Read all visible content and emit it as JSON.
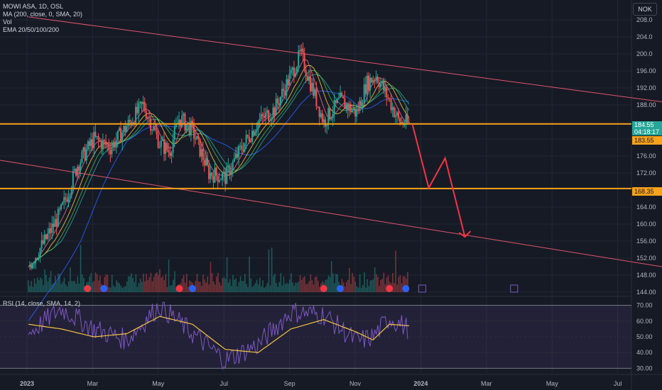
{
  "legend": {
    "symbol": "MOWI ASA, 1D, OSL",
    "ma": "MA (200, close, 0, SMA, 20)",
    "vol": "Vol",
    "ema": "EMA 20/50/100/200"
  },
  "rsi_legend": "RSI (14, close, SMA, 14, 2)",
  "currency": "NOK",
  "tags": {
    "last_price": "184.55",
    "countdown": "04:18:17",
    "upper_level": "183.55",
    "lower_level": "168.35"
  },
  "colors": {
    "background": "#161a25",
    "up": "#26a69a",
    "down": "#ef5350",
    "level_line": "#f7a21b",
    "channel": "#e0566b",
    "rsi_line": "#7e57c2",
    "rsi_ma": "#f5c242",
    "arrow": "#f23645"
  },
  "chart_data": [
    {
      "type": "candlestick",
      "title": "MOWI ASA, 1D, OSL",
      "y_axis": {
        "ylim": [
          143,
          211
        ],
        "ticks": [
          "208.0",
          "204.0",
          "200.0",
          "196.00",
          "192.00",
          "188.00",
          "180.00",
          "176.00",
          "172.00",
          "164.00",
          "160.00",
          "156.00",
          "152.00",
          "148.00",
          "144.00"
        ]
      },
      "x_axis": {
        "labels": [
          "2023",
          "Mar",
          "May",
          "Jul",
          "Sep",
          "Nov",
          "2024",
          "Mar",
          "May",
          "Jul"
        ],
        "label_x_month_index": [
          0,
          2,
          4,
          6,
          8,
          10,
          12,
          14,
          16,
          18
        ]
      },
      "price_path": [
        [
          0,
          150
        ],
        [
          0.5,
          156
        ],
        [
          1,
          163
        ],
        [
          1.5,
          174
        ],
        [
          2,
          180
        ],
        [
          2.5,
          178
        ],
        [
          3,
          183
        ],
        [
          3.5,
          188
        ],
        [
          4,
          179
        ],
        [
          4.3,
          177
        ],
        [
          4.6,
          185
        ],
        [
          5,
          182
        ],
        [
          5.5,
          172
        ],
        [
          6,
          171
        ],
        [
          6.5,
          178
        ],
        [
          7,
          184
        ],
        [
          7.5,
          187
        ],
        [
          8,
          195
        ],
        [
          8.3,
          200
        ],
        [
          8.6,
          193
        ],
        [
          9,
          184
        ],
        [
          9.5,
          189
        ],
        [
          10,
          186
        ],
        [
          10.3,
          193
        ],
        [
          10.6,
          195
        ],
        [
          11,
          189
        ],
        [
          11.3,
          184
        ],
        [
          11.6,
          183.6
        ]
      ],
      "closing_bars": {
        "last": 184.55
      },
      "levels": [
        {
          "name": "upper",
          "value": 183.55
        },
        {
          "name": "lower",
          "value": 168.35
        }
      ],
      "channel": {
        "upper": {
          "from": [
            2.6,
            206
          ],
          "to": [
            20.5,
            187.5
          ]
        },
        "lower": {
          "from": [
            0,
            175
          ],
          "to": [
            20.5,
            148.5
          ]
        }
      },
      "projection": [
        [
          11.7,
          183.5
        ],
        [
          12.2,
          168.5
        ],
        [
          12.7,
          175.5
        ],
        [
          13.3,
          157
        ]
      ],
      "event_markers_month_index": [
        1.8,
        2.3,
        4.6,
        5.0,
        9.0,
        9.5,
        11.0,
        11.5
      ],
      "event_upcoming_month_index": [
        12.0,
        14.8
      ]
    },
    {
      "type": "line",
      "title": "RSI (14, close, SMA, 14, 2)",
      "y_axis": {
        "ylim": [
          27,
          73
        ],
        "ticks": [
          "70.00",
          "60.00",
          "50.00",
          "40.00",
          "30.00"
        ]
      },
      "series": [
        {
          "values_by_month": [
            [
              0,
              52
            ],
            [
              1,
              68
            ],
            [
              2,
              55
            ],
            [
              3,
              48
            ],
            [
              4,
              70
            ],
            [
              5,
              52
            ],
            [
              6,
              35
            ],
            [
              7,
              45
            ],
            [
              8,
              66
            ],
            [
              9,
              64
            ],
            [
              10,
              47
            ],
            [
              10.5,
              50
            ],
            [
              11,
              62
            ],
            [
              11.6,
              55
            ]
          ]
        },
        {
          "values_by_month": [
            [
              0,
              58
            ],
            [
              1,
              55
            ],
            [
              2,
              50
            ],
            [
              3,
              52
            ],
            [
              4,
              63
            ],
            [
              5,
              58
            ],
            [
              6,
              42
            ],
            [
              7,
              40
            ],
            [
              8,
              55
            ],
            [
              9,
              61
            ],
            [
              10,
              53
            ],
            [
              10.5,
              48
            ],
            [
              11,
              58
            ],
            [
              11.6,
              57
            ]
          ]
        }
      ]
    }
  ]
}
